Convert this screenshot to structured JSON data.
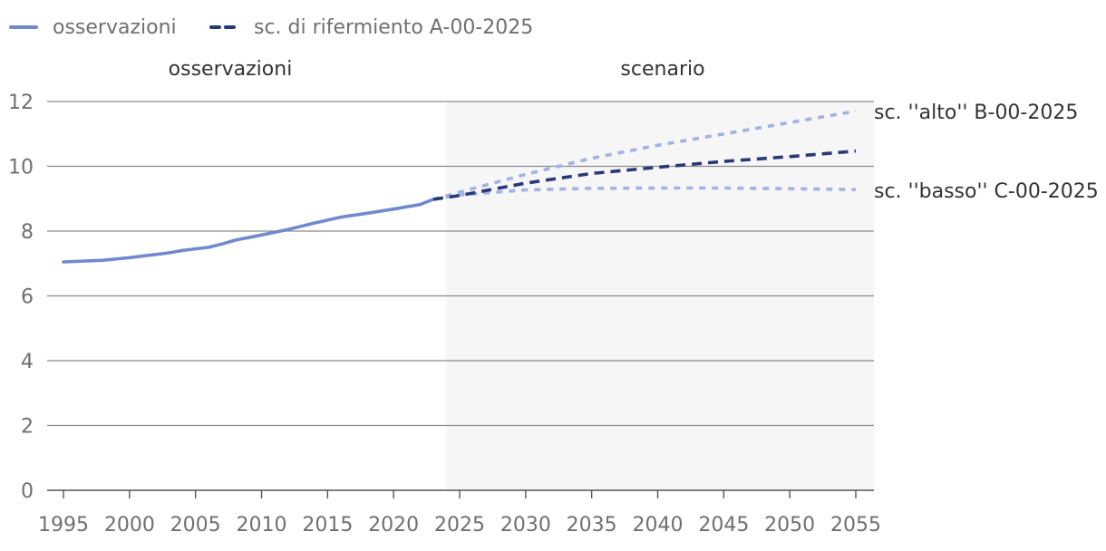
{
  "chart_data": {
    "type": "line",
    "x_range": [
      1994,
      2056
    ],
    "ylim": [
      0,
      12
    ],
    "y_ticks": [
      0,
      2,
      4,
      6,
      8,
      10,
      12
    ],
    "y_tick_labels": [
      "0",
      "2",
      "4",
      "6",
      "8",
      "10",
      "12"
    ],
    "x_ticks": [
      1995,
      2000,
      2005,
      2010,
      2015,
      2020,
      2025,
      2030,
      2035,
      2040,
      2045,
      2050,
      2055
    ],
    "x_tick_labels": [
      "1995",
      "2000",
      "2005",
      "2010",
      "2015",
      "2020",
      "2025",
      "2030",
      "2035",
      "2040",
      "2045",
      "2050",
      "2055"
    ],
    "grid": true,
    "legend_position": "top-left",
    "legend": [
      "osservazioni",
      "sc. di rifermiento A-00-2025"
    ],
    "sections": {
      "observations_label": "osservazioni",
      "scenario_label": "scenario",
      "scenario_start": 2024
    },
    "series": [
      {
        "name": "osservazioni",
        "style": "solid",
        "color": "#7089d0",
        "x": [
          1995,
          1998,
          2000,
          2003,
          2004,
          2006,
          2007,
          2008,
          2010,
          2012,
          2014,
          2016,
          2018,
          2020,
          2022,
          2023
        ],
        "values": [
          7.05,
          7.1,
          7.18,
          7.33,
          7.4,
          7.5,
          7.6,
          7.72,
          7.88,
          8.05,
          8.25,
          8.43,
          8.55,
          8.68,
          8.82,
          8.98
        ]
      },
      {
        "name": "sc. di rifermiento A-00-2025",
        "style": "dashed",
        "color": "#27397a",
        "x": [
          2023,
          2025,
          2030,
          2035,
          2040,
          2045,
          2050,
          2055
        ],
        "values": [
          8.98,
          9.1,
          9.48,
          9.78,
          9.97,
          10.15,
          10.3,
          10.47
        ]
      },
      {
        "name": "sc. \"alto\" B-00-2025",
        "style": "dotted",
        "color": "#a1b2e3",
        "label": "sc. ''alto'' B-00-2025",
        "x": [
          2023,
          2025,
          2030,
          2035,
          2040,
          2045,
          2050,
          2055
        ],
        "values": [
          8.98,
          9.2,
          9.75,
          10.25,
          10.65,
          11.0,
          11.35,
          11.7
        ]
      },
      {
        "name": "sc. \"basso\" C-00-2025",
        "style": "dotted",
        "color": "#a1b2e3",
        "label": "sc. ''basso'' C-00-2025",
        "x": [
          2023,
          2025,
          2030,
          2035,
          2040,
          2045,
          2050,
          2055
        ],
        "values": [
          8.98,
          9.12,
          9.27,
          9.32,
          9.33,
          9.33,
          9.31,
          9.28
        ]
      }
    ]
  }
}
